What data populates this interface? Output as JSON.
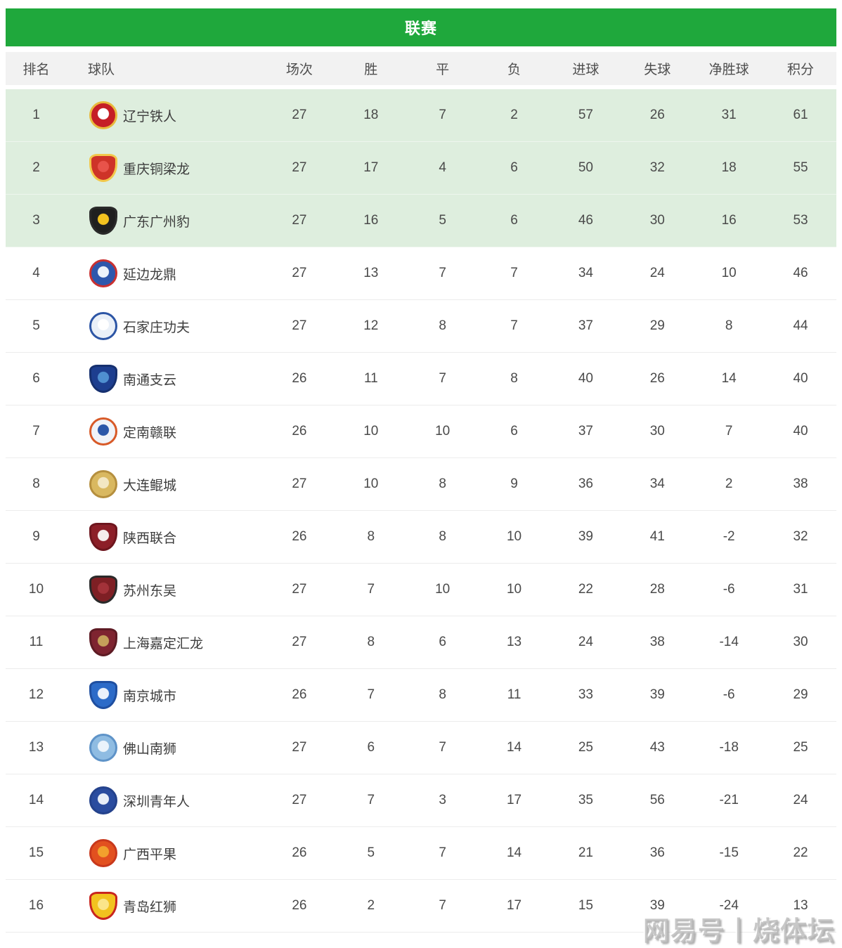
{
  "header": {
    "title": "联赛",
    "bar_color": "#1fa83c",
    "text_color": "#ffffff"
  },
  "table": {
    "columns": [
      "排名",
      "球队",
      "场次",
      "胜",
      "平",
      "负",
      "进球",
      "失球",
      "净胜球",
      "积分"
    ],
    "header_bg": "#f2f2f2",
    "highlight_bg": "#deeede",
    "highlighted_rows": 3,
    "rows": [
      {
        "rank": 1,
        "team": "辽宁铁人",
        "played": 27,
        "won": 18,
        "drawn": 7,
        "lost": 2,
        "goals_for": 57,
        "goals_against": 26,
        "goal_diff": 31,
        "points": 61,
        "logo": {
          "shape": "circle",
          "main": "#c51e26",
          "accent": "#e8b93c",
          "inner": "#ffffff"
        }
      },
      {
        "rank": 2,
        "team": "重庆铜梁龙",
        "played": 27,
        "won": 17,
        "drawn": 4,
        "lost": 6,
        "goals_for": 50,
        "goals_against": 32,
        "goal_diff": 18,
        "points": 55,
        "logo": {
          "shape": "shield",
          "main": "#ce3328",
          "accent": "#f2c84b",
          "inner": "#e8534a"
        }
      },
      {
        "rank": 3,
        "team": "广东广州豹",
        "played": 27,
        "won": 16,
        "drawn": 5,
        "lost": 6,
        "goals_for": 46,
        "goals_against": 30,
        "goal_diff": 16,
        "points": 53,
        "logo": {
          "shape": "shield",
          "main": "#1f1f1f",
          "accent": "#2a2a2a",
          "inner": "#f2c21f"
        }
      },
      {
        "rank": 4,
        "team": "延边龙鼎",
        "played": 27,
        "won": 13,
        "drawn": 7,
        "lost": 7,
        "goals_for": 34,
        "goals_against": 24,
        "goal_diff": 10,
        "points": 46,
        "logo": {
          "shape": "circle",
          "main": "#2e57ac",
          "accent": "#c93030",
          "inner": "#edf2fa"
        }
      },
      {
        "rank": 5,
        "team": "石家庄功夫",
        "played": 27,
        "won": 12,
        "drawn": 8,
        "lost": 7,
        "goals_for": 37,
        "goals_against": 29,
        "goal_diff": 8,
        "points": 44,
        "logo": {
          "shape": "circle",
          "main": "#eaf0f8",
          "accent": "#2c55a5",
          "inner": "#ffffff"
        }
      },
      {
        "rank": 6,
        "team": "南通支云",
        "played": 26,
        "won": 11,
        "drawn": 7,
        "lost": 8,
        "goals_for": 40,
        "goals_against": 26,
        "goal_diff": 14,
        "points": 40,
        "logo": {
          "shape": "shield",
          "main": "#1d3e8f",
          "accent": "#16306f",
          "inner": "#4f8fd0"
        }
      },
      {
        "rank": 7,
        "team": "定南赣联",
        "played": 26,
        "won": 10,
        "drawn": 10,
        "lost": 6,
        "goals_for": 37,
        "goals_against": 30,
        "goal_diff": 7,
        "points": 40,
        "logo": {
          "shape": "circle",
          "main": "#f0f3f8",
          "accent": "#d85a28",
          "inner": "#2b57a8"
        }
      },
      {
        "rank": 8,
        "team": "大连鲲城",
        "played": 27,
        "won": 10,
        "drawn": 8,
        "lost": 9,
        "goals_for": 36,
        "goals_against": 34,
        "goal_diff": 2,
        "points": 38,
        "logo": {
          "shape": "circle",
          "main": "#d9b860",
          "accent": "#b58f3e",
          "inner": "#f3e7c3"
        }
      },
      {
        "rank": 9,
        "team": "陕西联合",
        "played": 26,
        "won": 8,
        "drawn": 8,
        "lost": 10,
        "goals_for": 39,
        "goals_against": 41,
        "goal_diff": -2,
        "points": 32,
        "logo": {
          "shape": "shield",
          "main": "#8c1f28",
          "accent": "#6e161e",
          "inner": "#f5eded"
        }
      },
      {
        "rank": 10,
        "team": "苏州东吴",
        "played": 27,
        "won": 7,
        "drawn": 10,
        "lost": 10,
        "goals_for": 22,
        "goals_against": 28,
        "goal_diff": -6,
        "points": 31,
        "logo": {
          "shape": "shield",
          "main": "#7e1f24",
          "accent": "#2a2a2a",
          "inner": "#a33239"
        }
      },
      {
        "rank": 11,
        "team": "上海嘉定汇龙",
        "played": 27,
        "won": 8,
        "drawn": 6,
        "lost": 13,
        "goals_for": 24,
        "goals_against": 38,
        "goal_diff": -14,
        "points": 30,
        "logo": {
          "shape": "shield",
          "main": "#7e2430",
          "accent": "#5e1b24",
          "inner": "#c5a05a"
        }
      },
      {
        "rank": 12,
        "team": "南京城市",
        "played": 26,
        "won": 7,
        "drawn": 8,
        "lost": 11,
        "goals_for": 33,
        "goals_against": 39,
        "goal_diff": -6,
        "points": 29,
        "logo": {
          "shape": "shield",
          "main": "#2c6bc8",
          "accent": "#1f4fa0",
          "inner": "#eaf1fb"
        }
      },
      {
        "rank": 13,
        "team": "佛山南狮",
        "played": 27,
        "won": 6,
        "drawn": 7,
        "lost": 14,
        "goals_for": 25,
        "goals_against": 43,
        "goal_diff": -18,
        "points": 25,
        "logo": {
          "shape": "circle",
          "main": "#8fbce2",
          "accent": "#5e93c8",
          "inner": "#eaf3fb"
        }
      },
      {
        "rank": 14,
        "team": "深圳青年人",
        "played": 27,
        "won": 7,
        "drawn": 3,
        "lost": 17,
        "goals_for": 35,
        "goals_against": 56,
        "goal_diff": -21,
        "points": 24,
        "logo": {
          "shape": "circle",
          "main": "#2a4c9f",
          "accent": "#24428c",
          "inner": "#e8eef8"
        }
      },
      {
        "rank": 15,
        "team": "广西平果",
        "played": 26,
        "won": 5,
        "drawn": 7,
        "lost": 14,
        "goals_for": 21,
        "goals_against": 36,
        "goal_diff": -15,
        "points": 22,
        "logo": {
          "shape": "circle",
          "main": "#e2501f",
          "accent": "#c8381c",
          "inner": "#f2a12d"
        }
      },
      {
        "rank": 16,
        "team": "青岛红狮",
        "played": 26,
        "won": 2,
        "drawn": 7,
        "lost": 17,
        "goals_for": 15,
        "goals_against": 39,
        "goal_diff": -24,
        "points": 13,
        "logo": {
          "shape": "shield",
          "main": "#f2c21f",
          "accent": "#c8251f",
          "inner": "#fbe58a"
        }
      }
    ]
  },
  "watermark": {
    "text": "网易号丨烧体坛"
  }
}
